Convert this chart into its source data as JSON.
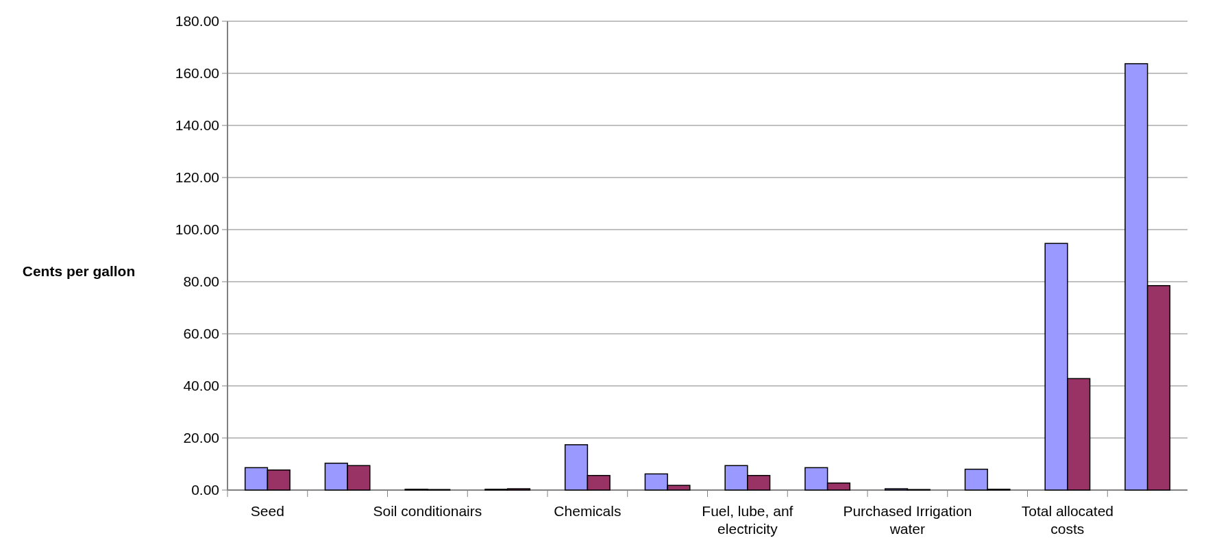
{
  "chart_data": {
    "type": "bar",
    "ylabel": "Cents per gallon",
    "categories": [
      "Seed",
      null,
      "Soil conditionairs",
      null,
      "Chemicals",
      null,
      "Fuel, lube, anf electricity",
      null,
      "Purchased Irrigation water",
      null,
      "Total allocated costs",
      null
    ],
    "series": [
      {
        "color": "#9999ff",
        "values": [
          8.6,
          10.3,
          0.3,
          0.3,
          17.4,
          6.2,
          9.4,
          8.6,
          0.5,
          8.0,
          94.7,
          163.7
        ]
      },
      {
        "color": "#993366",
        "values": [
          7.7,
          9.4,
          0.2,
          0.5,
          5.6,
          1.8,
          5.6,
          2.7,
          0.2,
          0.3,
          42.8,
          78.5
        ]
      }
    ],
    "ylim": [
      0,
      180
    ],
    "yticks": [
      {
        "value": 0,
        "label": "0.00"
      },
      {
        "value": 20,
        "label": "20.00"
      },
      {
        "value": 40,
        "label": "40.00"
      },
      {
        "value": 60,
        "label": "60.00"
      },
      {
        "value": 80,
        "label": "80.00"
      },
      {
        "value": 100,
        "label": "100.00"
      },
      {
        "value": 120,
        "label": "120.00"
      },
      {
        "value": 140,
        "label": "140.00"
      },
      {
        "value": 160,
        "label": "160.00"
      },
      {
        "value": 180,
        "label": "180.00"
      }
    ],
    "grid": "y"
  }
}
